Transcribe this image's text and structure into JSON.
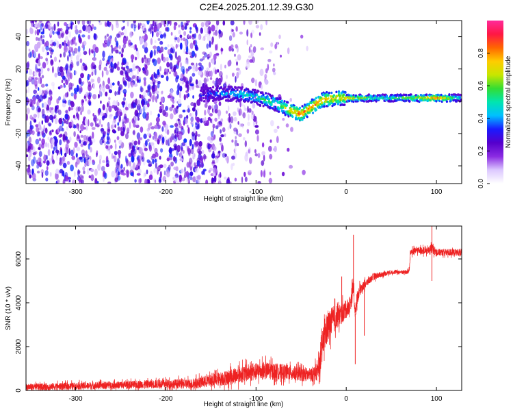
{
  "page": {
    "title": "C2E4.2025.201.12.39.G30"
  },
  "colors": {
    "snr_line": "#ee2222",
    "colormap": [
      "#ffffff",
      "#dcc8ff",
      "#8a2be2",
      "#5500cc",
      "#1a1aff",
      "#00bfff",
      "#00e5b0",
      "#33dd33",
      "#c8e600",
      "#ffcc00",
      "#ff6600",
      "#ff1744",
      "#ff2a9a"
    ]
  },
  "chart_data": [
    {
      "type": "heatmap",
      "title": "C2E4.2025.201.12.39.G30",
      "xlabel": "Height of straight line (km)",
      "ylabel": "Frequency (Hz)",
      "xlim": [
        -355,
        128
      ],
      "ylim": [
        -51,
        50
      ],
      "xticks": [
        -300,
        -200,
        -100,
        0,
        100
      ],
      "yticks": [
        -40,
        -20,
        0,
        20,
        40
      ],
      "colorbar": {
        "label": "Normalized spectral amplitude",
        "range": [
          0,
          1
        ],
        "ticks": [
          "0.0",
          "0.2",
          "0.4",
          "0.6",
          "0.8"
        ]
      },
      "signal_band": {
        "description_points": [
          [
            -160,
            4
          ],
          [
            -140,
            5
          ],
          [
            -110,
            4
          ],
          [
            -90,
            1
          ],
          [
            -75,
            -2
          ],
          [
            -60,
            -6
          ],
          [
            -50,
            -8
          ],
          [
            -40,
            -4
          ],
          [
            -25,
            1
          ],
          [
            -10,
            2
          ],
          [
            10,
            2
          ],
          [
            50,
            2
          ],
          [
            100,
            2
          ],
          [
            128,
            2
          ]
        ],
        "amplitude": [
          [
            -160,
            0.3
          ],
          [
            -120,
            0.45
          ],
          [
            -80,
            0.55
          ],
          [
            -50,
            0.85
          ],
          [
            -30,
            0.8
          ],
          [
            0,
            0.75
          ],
          [
            40,
            0.5
          ],
          [
            80,
            0.7
          ],
          [
            100,
            0.85
          ],
          [
            128,
            0.45
          ]
        ]
      },
      "noise_region": {
        "x_range": [
          -355,
          -100
        ],
        "max_amplitude": 0.25
      }
    },
    {
      "type": "line",
      "xlabel": "Height of straight line (km)",
      "ylabel": "SNR (10 * v/v)",
      "xlim": [
        -355,
        128
      ],
      "ylim": [
        0,
        7500
      ],
      "xticks": [
        -300,
        -200,
        -100,
        0,
        100
      ],
      "yticks": [
        0,
        2000,
        4000,
        6000
      ],
      "series": [
        {
          "x": [
            -355,
            -300,
            -250,
            -200,
            -170,
            -150,
            -130,
            -110,
            -90,
            -70,
            -50,
            -40,
            -32,
            -28,
            -25,
            -20,
            -15,
            -10,
            -5,
            0,
            5,
            8,
            10,
            12,
            15,
            20,
            25,
            30,
            40,
            50,
            60,
            68,
            70,
            71,
            80,
            90,
            95,
            100,
            110,
            128
          ],
          "y": [
            150,
            200,
            250,
            300,
            300,
            450,
            600,
            800,
            900,
            850,
            750,
            700,
            850,
            1500,
            2400,
            2900,
            3200,
            3400,
            3500,
            3700,
            4000,
            4800,
            3500,
            4200,
            4600,
            4800,
            5000,
            5200,
            5300,
            5400,
            5400,
            5400,
            5500,
            6300,
            6400,
            6350,
            6500,
            6300,
            6300,
            6300
          ],
          "noise": [
            200,
            200,
            220,
            250,
            300,
            350,
            450,
            500,
            500,
            450,
            400,
            400,
            500,
            800,
            900,
            900,
            800,
            700,
            600,
            500,
            500,
            600,
            400,
            400,
            300,
            250,
            220,
            200,
            150,
            120,
            120,
            120,
            120,
            200,
            200,
            200,
            300,
            200,
            200,
            200
          ],
          "spikes": [
            [
              8,
              7100
            ],
            [
              10,
              1200
            ],
            [
              95,
              7500
            ],
            [
              95,
              5000
            ],
            [
              75,
              6600
            ],
            [
              -5,
              5200
            ],
            [
              20,
              2500
            ],
            [
              -30,
              300
            ]
          ]
        }
      ]
    }
  ]
}
